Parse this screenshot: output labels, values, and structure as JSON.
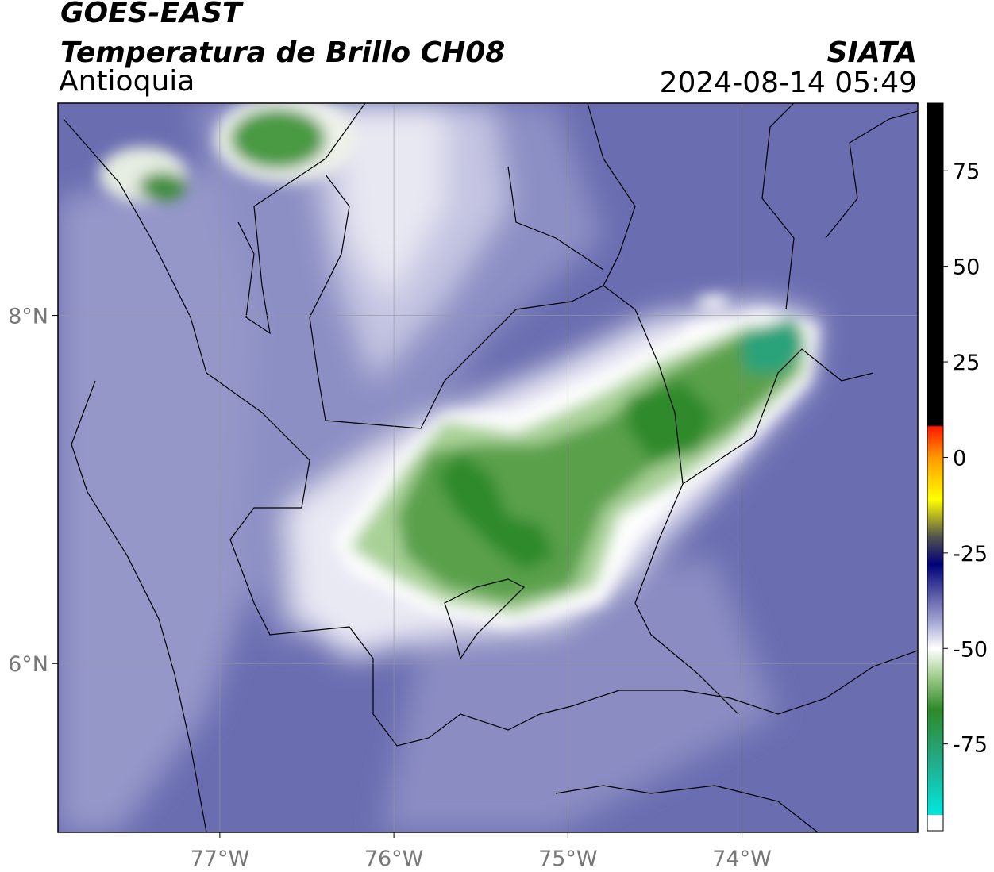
{
  "header": {
    "satellite": "GOES-EAST",
    "title": "Temperatura de Brillo CH08",
    "region": "Antioquia",
    "source": "SIATA",
    "datetime": "2024-08-14 05:49"
  },
  "map": {
    "xlim": [
      -77.93,
      -72.99
    ],
    "ylim": [
      5.03,
      9.22
    ],
    "xticks": [
      {
        "value": -77,
        "label": "77°W"
      },
      {
        "value": -76,
        "label": "76°W"
      },
      {
        "value": -75,
        "label": "75°W"
      },
      {
        "value": -74,
        "label": "74°W"
      }
    ],
    "yticks": [
      {
        "value": 6,
        "label": "6°N"
      },
      {
        "value": 8,
        "label": "8°N"
      }
    ],
    "grid": true
  },
  "colorbar": {
    "lim": [
      -97.7,
      92.7
    ],
    "ticks": [
      75,
      50,
      25,
      0,
      -25,
      -50,
      -75
    ],
    "stops": [
      {
        "value": -97.7,
        "color": "#ffffff"
      },
      {
        "value": -93.6,
        "color": "#ffffff"
      },
      {
        "value": -93.5,
        "color": "#00e8e0"
      },
      {
        "value": -80,
        "color": "#22ad8c"
      },
      {
        "value": -66,
        "color": "#2e8a2a"
      },
      {
        "value": -57,
        "color": "#a6cf92"
      },
      {
        "value": -50,
        "color": "#ffffff"
      },
      {
        "value": -43,
        "color": "#a4a6d4"
      },
      {
        "value": -36,
        "color": "#5a5ca8"
      },
      {
        "value": -28,
        "color": "#00007a"
      },
      {
        "value": -21,
        "color": "#505050"
      },
      {
        "value": -11,
        "color": "#ffff00"
      },
      {
        "value": 0,
        "color": "#ff9900"
      },
      {
        "value": 8,
        "color": "#ff1a00"
      },
      {
        "value": 8.4,
        "color": "#000000"
      },
      {
        "value": 92.7,
        "color": "#000000"
      }
    ]
  }
}
